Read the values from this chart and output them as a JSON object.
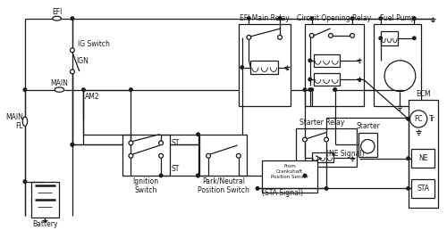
{
  "bg_color": "#ffffff",
  "line_color": "#1a1a1a",
  "labels": {
    "EFI": "EFI",
    "IG_Switch": "IG Switch",
    "IGN": "IGN",
    "MAIN": "MAIN",
    "MAIN_FL": "MAIN\nFL",
    "AM2": "AM2",
    "ST_top": "ST",
    "ST_bot": "ST",
    "Ignition_Switch": "Ignition\nSwitch",
    "Park_Neutral": "Park/Neutral\nPosition Switch",
    "EFI_Main_Relay": "EFI Main Relay",
    "Circuit_Opening_Relay": "Circuit Opening Relay",
    "Fuel_Pump": "Fuel Pump",
    "ECM": "ECM",
    "FC": "FC",
    "Tr": "Tr",
    "NE": "NE",
    "STA": "STA",
    "Starter_Relay": "Starter Relay",
    "Starter": "Starter",
    "From_Crankshaft": "From\nCrankshaft\nPosition Sensor",
    "NE_Signal": "(NE Signal)",
    "STA_Signal": "(STA Signal)",
    "Battery": "Battery"
  }
}
